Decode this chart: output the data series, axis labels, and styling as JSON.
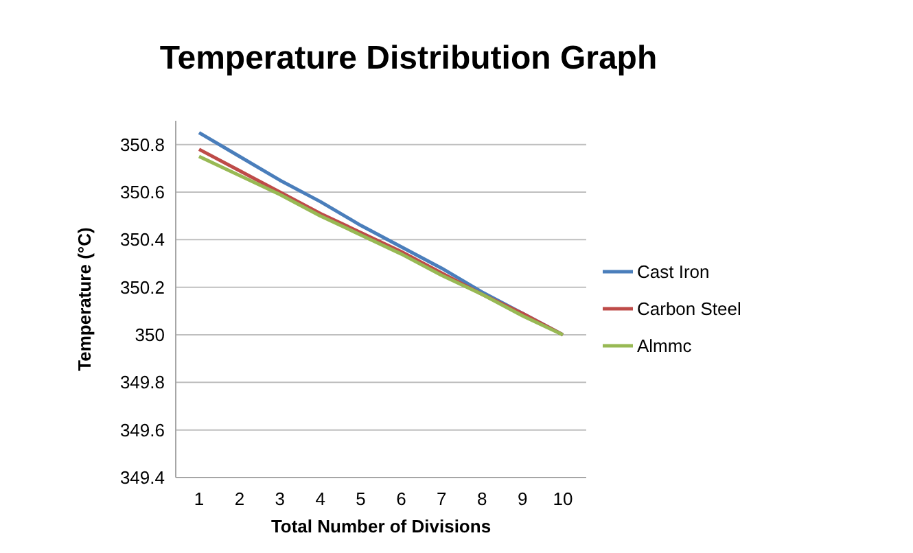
{
  "chart_data": {
    "type": "line",
    "title": "Temperature Distribution Graph",
    "xlabel": "Total Number of Divisions",
    "ylabel": "Temperature (°C)",
    "categories": [
      "1",
      "2",
      "3",
      "4",
      "5",
      "6",
      "7",
      "8",
      "9",
      "10"
    ],
    "series": [
      {
        "name": "Cast Iron",
        "color": "#4a7ebb",
        "values": [
          350.85,
          350.75,
          350.65,
          350.56,
          350.46,
          350.37,
          350.28,
          350.18,
          350.09,
          350
        ]
      },
      {
        "name": "Carbon Steel",
        "color": "#be4b48",
        "values": [
          350.78,
          350.69,
          350.6,
          350.51,
          350.43,
          350.35,
          350.26,
          350.17,
          350.09,
          350
        ]
      },
      {
        "name": "Almmc",
        "color": "#98b954",
        "values": [
          350.75,
          350.67,
          350.59,
          350.5,
          350.42,
          350.34,
          350.25,
          350.17,
          350.08,
          350
        ]
      }
    ],
    "ylim": [
      349.4,
      350.9
    ],
    "yticks": [
      349.4,
      349.6,
      349.8,
      350,
      {
        "value": 350.2,
        "label": "350.2"
      },
      350.4,
      350.6,
      350.8
    ],
    "grid": "y",
    "legend": "right",
    "marker": "none",
    "line_style": "solid"
  }
}
